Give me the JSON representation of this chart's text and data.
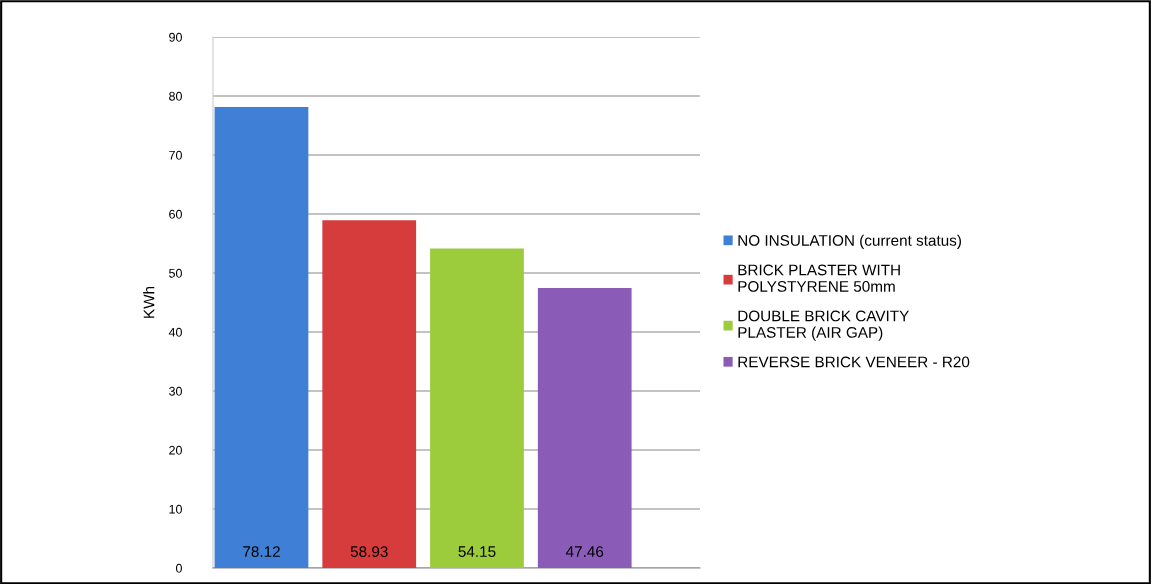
{
  "chart_data": {
    "type": "bar",
    "ylabel": "KWh",
    "categories": [
      null
    ],
    "series": [
      {
        "name": "NO INSULATION (current status)",
        "color": "#3f7fd6",
        "values": [
          78.12
        ]
      },
      {
        "name": "BRICK PLASTER WITH\nPOLYSTYRENE 50mm",
        "color": "#d63c3c",
        "values": [
          58.93
        ]
      },
      {
        "name": "DOUBLE BRICK CAVITY\nPLASTER (AIR GAP)",
        "color": "#9ccc3c",
        "values": [
          54.15
        ]
      },
      {
        "name": "REVERSE BRICK VENEER - R20",
        "color": "#8a5cb8",
        "values": [
          47.46
        ]
      }
    ],
    "ylim": [
      0,
      90
    ],
    "yticks": [
      0,
      10,
      20,
      30,
      40,
      50,
      60,
      70,
      80,
      90
    ],
    "grid": "y",
    "legend": "right",
    "data_labels": true
  }
}
